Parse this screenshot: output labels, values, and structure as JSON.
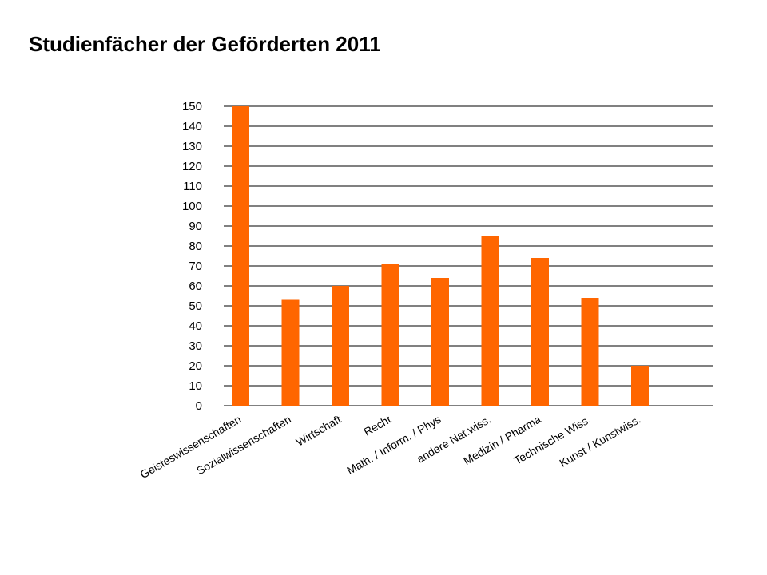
{
  "title": "Studienfächer der Geförderten 2011",
  "colors": {
    "bar": "#FF6600",
    "grid": "#000000",
    "text": "#000000"
  },
  "chart_data": {
    "type": "bar",
    "title": "Studienfächer der Geförderten 2011",
    "categories": [
      "Geisteswissenschaften",
      "Sozialwissenschaften",
      "Wirtschaft",
      "Recht",
      "Math. / Inform. / Phys",
      "andere Nat.wiss.",
      "Medizin / Pharma",
      "Technische Wiss.",
      "Kunst / Kunstwiss."
    ],
    "values": [
      150,
      53,
      60,
      71,
      64,
      85,
      74,
      54,
      20
    ],
    "ylim": [
      0,
      150
    ],
    "yticks": [
      0,
      10,
      20,
      30,
      40,
      50,
      60,
      70,
      80,
      90,
      100,
      110,
      120,
      130,
      140,
      150
    ],
    "grid": true,
    "legend": "none",
    "xlabel": "",
    "ylabel": ""
  }
}
